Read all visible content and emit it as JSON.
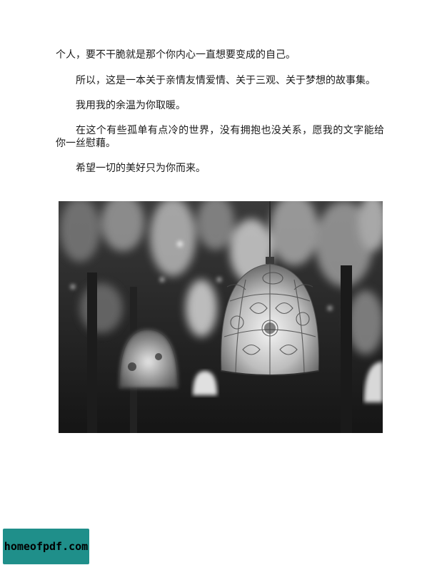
{
  "paragraphs": [
    "个人，要不干脆就是那个你内心一直想要变成的自己。",
    "所以，这是一本关于亲情友情爱情、关于三观、关于梦想的故事集。",
    "我用我的余温为你取暖。",
    "在这个有些孤单有点冷的世界，没有拥抱也没关系，愿我的文字能给你一丝慰藉。",
    "希望一切的美好只为你而来。"
  ],
  "watermark": {
    "text": "homeofpdf.com",
    "background": "#1f8f8a"
  }
}
